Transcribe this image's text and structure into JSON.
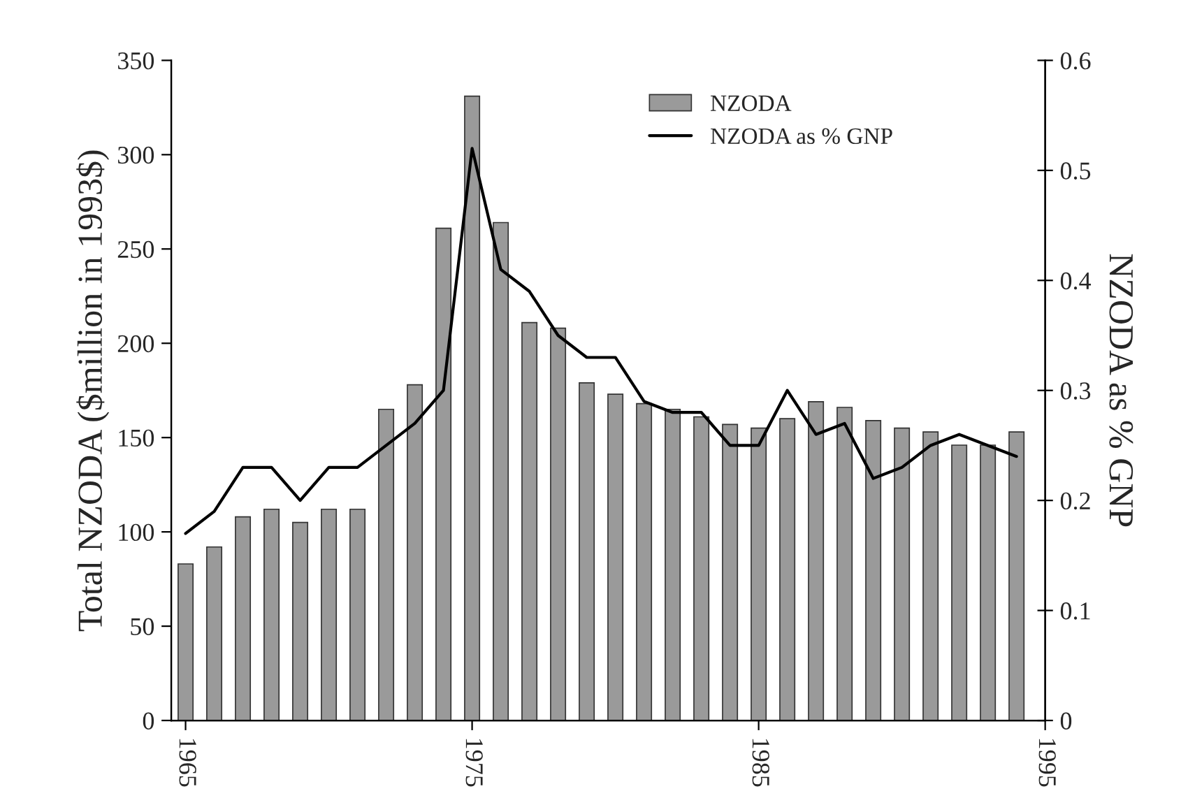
{
  "chart_data": {
    "type": "bar",
    "ylabel": "Total NZODA ($million in 1993$)",
    "y2label": "NZODA as % GNP",
    "x": [
      1965,
      1966,
      1967,
      1968,
      1969,
      1970,
      1971,
      1972,
      1973,
      1974,
      1975,
      1976,
      1977,
      1978,
      1979,
      1980,
      1981,
      1982,
      1983,
      1984,
      1985,
      1986,
      1987,
      1988,
      1989,
      1990,
      1991,
      1992,
      1993,
      1994
    ],
    "series": [
      {
        "name": "NZODA",
        "color": "#9a9a9a",
        "values": [
          83,
          92,
          108,
          112,
          105,
          112,
          112,
          165,
          178,
          261,
          331,
          264,
          211,
          208,
          179,
          173,
          168,
          165,
          161,
          157,
          155,
          160,
          169,
          166,
          159,
          155,
          153,
          146,
          146,
          153
        ]
      },
      {
        "name": "NZODA as % GNP",
        "type": "line",
        "axis": "y2",
        "color": "#000000",
        "values": [
          0.17,
          0.19,
          0.23,
          0.23,
          0.2,
          0.23,
          0.23,
          0.25,
          0.27,
          0.3,
          0.52,
          0.41,
          0.39,
          0.35,
          0.33,
          0.33,
          0.29,
          0.28,
          0.28,
          0.25,
          0.25,
          0.3,
          0.26,
          0.27,
          0.22,
          0.23,
          0.25,
          0.26,
          0.25,
          0.24
        ]
      }
    ],
    "xlim": [
      1964.5,
      1995
    ],
    "xticks": [
      1965,
      1975,
      1985,
      1995
    ],
    "ylim": [
      0,
      350
    ],
    "yticks": [
      0,
      50,
      100,
      150,
      200,
      250,
      300,
      350
    ],
    "y2lim": [
      0,
      0.6
    ],
    "y2ticks": [
      0,
      0.1,
      0.2,
      0.3,
      0.4,
      0.5,
      0.6
    ],
    "legend": "top right",
    "grid": false,
    "marker": "none",
    "line_style": "solid"
  }
}
